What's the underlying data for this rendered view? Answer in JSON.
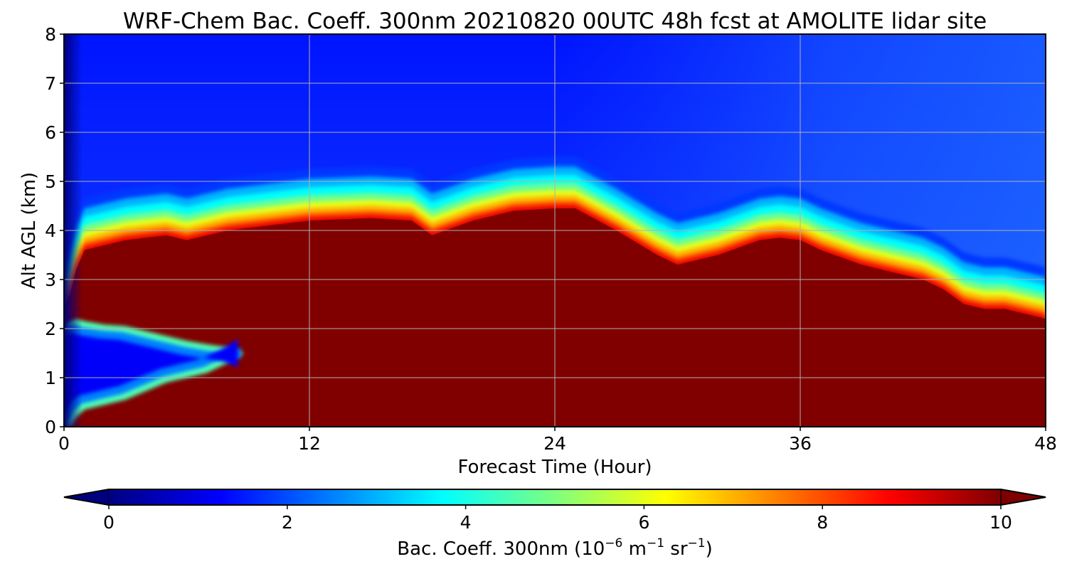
{
  "chart_data": {
    "type": "heatmap",
    "title": "WRF-Chem Bac. Coeff. 300nm  20210820 00UTC 48h fcst at AMOLITE lidar site",
    "xlabel": "Forecast Time (Hour)",
    "ylabel": "Alt AGL (km)",
    "xlim": [
      0,
      48
    ],
    "ylim": [
      0,
      8
    ],
    "x_ticks": [
      0,
      12,
      24,
      36,
      48
    ],
    "y_ticks": [
      0,
      1,
      2,
      3,
      4,
      5,
      6,
      7,
      8
    ],
    "grid": true,
    "colorbar": {
      "label_main": "Bac. Coeff. 300nm  (10",
      "label_exp1": "−6",
      "label_mid": " m",
      "label_exp2": "−1",
      "label_mid2": " sr",
      "label_exp3": "−1",
      "label_end": ")",
      "range": [
        0,
        10
      ],
      "ticks": [
        0,
        2,
        4,
        6,
        8,
        10
      ],
      "extend": "both",
      "colormap": "jet",
      "placement": "bottom"
    },
    "aerosol_top_km": {
      "x": [
        0,
        0.3,
        0.6,
        1,
        2,
        3,
        5,
        6,
        8,
        10,
        12,
        15,
        17,
        18,
        20,
        22,
        24,
        25,
        27,
        29,
        30,
        32,
        34,
        35,
        36,
        37,
        39,
        41,
        42,
        43,
        44,
        45,
        46,
        47,
        48
      ],
      "values": [
        2.4,
        2.7,
        3.2,
        3.6,
        3.7,
        3.8,
        3.9,
        3.8,
        4.0,
        4.1,
        4.2,
        4.25,
        4.2,
        3.9,
        4.2,
        4.4,
        4.45,
        4.45,
        4.0,
        3.5,
        3.3,
        3.5,
        3.8,
        3.85,
        3.8,
        3.6,
        3.3,
        3.1,
        3.0,
        2.8,
        2.5,
        2.4,
        2.4,
        2.3,
        2.2
      ]
    },
    "low_layer_top_km": {
      "x": [
        0,
        0.3,
        0.6,
        1,
        2,
        3,
        4,
        5,
        6,
        7,
        8,
        8.8
      ],
      "values": [
        2.1,
        2.15,
        2.2,
        2.15,
        2.08,
        2.05,
        1.95,
        1.85,
        1.75,
        1.68,
        1.62,
        1.5
      ]
    },
    "surface_layer_top_km": {
      "x": [
        0,
        0.3,
        0.6,
        1,
        2,
        3,
        5,
        7,
        8,
        8.8
      ],
      "values": [
        0.0,
        0.0,
        0.2,
        0.35,
        0.45,
        0.55,
        0.9,
        1.1,
        1.3,
        1.5
      ]
    },
    "clean_air_background": 1.0
  }
}
